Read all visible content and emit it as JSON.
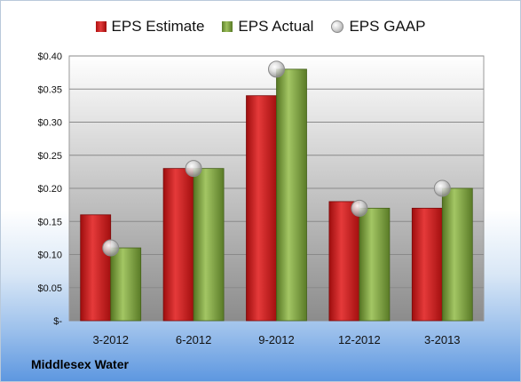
{
  "chart_data": {
    "type": "bar",
    "categories": [
      "3-2012",
      "6-2012",
      "9-2012",
      "12-2012",
      "3-2013"
    ],
    "series": [
      {
        "name": "EPS Estimate",
        "values": [
          0.16,
          0.23,
          0.34,
          0.18,
          0.17
        ],
        "color": "#cc2020"
      },
      {
        "name": "EPS Actual",
        "values": [
          0.11,
          0.23,
          0.38,
          0.17,
          0.2
        ],
        "color": "#7ea441"
      },
      {
        "name": "EPS GAAP",
        "values": [
          0.11,
          0.23,
          0.38,
          0.17,
          0.2
        ],
        "color": "#c8c8c8",
        "marker": "circle"
      }
    ],
    "ylim": [
      0,
      0.4
    ],
    "yticks": [
      {
        "value": 0,
        "label": "$-"
      },
      {
        "value": 0.05,
        "label": "$0.05"
      },
      {
        "value": 0.1,
        "label": "$0.10"
      },
      {
        "value": 0.15,
        "label": "$0.15"
      },
      {
        "value": 0.2,
        "label": "$0.20"
      },
      {
        "value": 0.25,
        "label": "$0.25"
      },
      {
        "value": 0.3,
        "label": "$0.30"
      },
      {
        "value": 0.35,
        "label": "$0.35"
      },
      {
        "value": 0.4,
        "label": "$0.40"
      }
    ],
    "grid": true,
    "legend": "top-center"
  },
  "footer": {
    "company": "Middlesex Water"
  }
}
